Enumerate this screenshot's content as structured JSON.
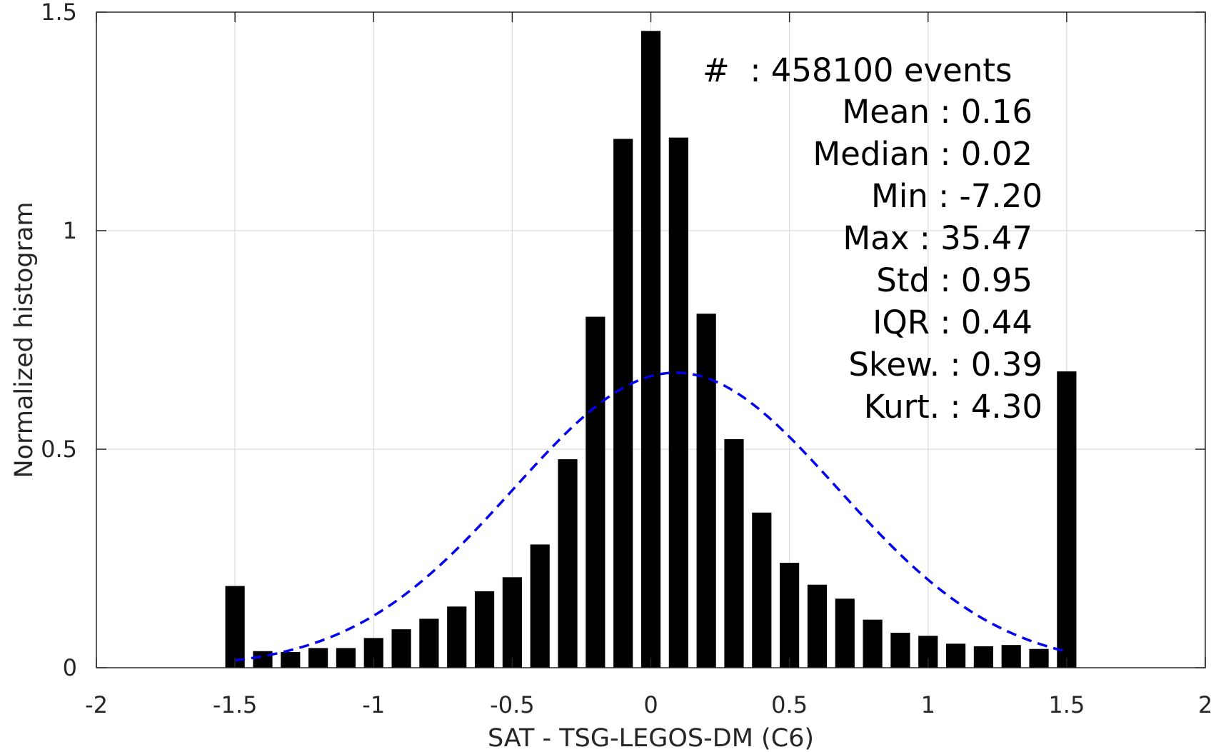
{
  "chart_data": {
    "type": "bar",
    "xlabel": "SAT - TSG-LEGOS-DM (C6)",
    "ylabel": "Normalized histogram",
    "xlim": [
      -2,
      2
    ],
    "ylim": [
      0,
      1.5
    ],
    "xticks": [
      -2,
      -1.5,
      -1,
      -0.5,
      0,
      0.5,
      1,
      1.5,
      2
    ],
    "xtick_labels": [
      "-2",
      "-1.5",
      "-1",
      "-0.5",
      "0",
      "0.5",
      "1",
      "1.5",
      "2"
    ],
    "yticks": [
      0,
      0.5,
      1,
      1.5
    ],
    "ytick_labels": [
      "0",
      "0.5",
      "1",
      "1.5"
    ],
    "grid": true,
    "bar_width": 0.07,
    "x": [
      -1.5,
      -1.4,
      -1.3,
      -1.2,
      -1.1,
      -1.0,
      -0.9,
      -0.8,
      -0.7,
      -0.6,
      -0.5,
      -0.4,
      -0.3,
      -0.2,
      -0.1,
      0.0,
      0.1,
      0.2,
      0.3,
      0.4,
      0.5,
      0.6,
      0.7,
      0.8,
      0.9,
      1.0,
      1.1,
      1.2,
      1.3,
      1.4,
      1.5
    ],
    "values": [
      0.187,
      0.038,
      0.036,
      0.045,
      0.045,
      0.068,
      0.088,
      0.112,
      0.14,
      0.175,
      0.207,
      0.282,
      0.477,
      0.803,
      1.21,
      1.457,
      1.213,
      0.81,
      0.523,
      0.355,
      0.24,
      0.19,
      0.158,
      0.11,
      0.08,
      0.073,
      0.055,
      0.049,
      0.052,
      0.043,
      0.678
    ],
    "series": [
      {
        "type": "bar",
        "color": "#000000"
      },
      {
        "type": "line",
        "style": "dashed",
        "color": "#0000ee",
        "mean": 0.09,
        "std": 0.585,
        "peak": 0.675,
        "x_range": [
          -1.5,
          1.5
        ]
      }
    ],
    "stats": {
      "count_label": "#  : 458100 events",
      "lines": [
        {
          "label": "Mean",
          "value": "0.16"
        },
        {
          "label": "Median",
          "value": "0.02"
        },
        {
          "label": "Min",
          "value": "-7.20"
        },
        {
          "label": "Max",
          "value": "35.47"
        },
        {
          "label": "Std",
          "value": "0.95"
        },
        {
          "label": "IQR",
          "value": "0.44"
        },
        {
          "label": "Skew.",
          "value": "0.39"
        },
        {
          "label": "Kurt.",
          "value": "4.30"
        }
      ]
    }
  }
}
